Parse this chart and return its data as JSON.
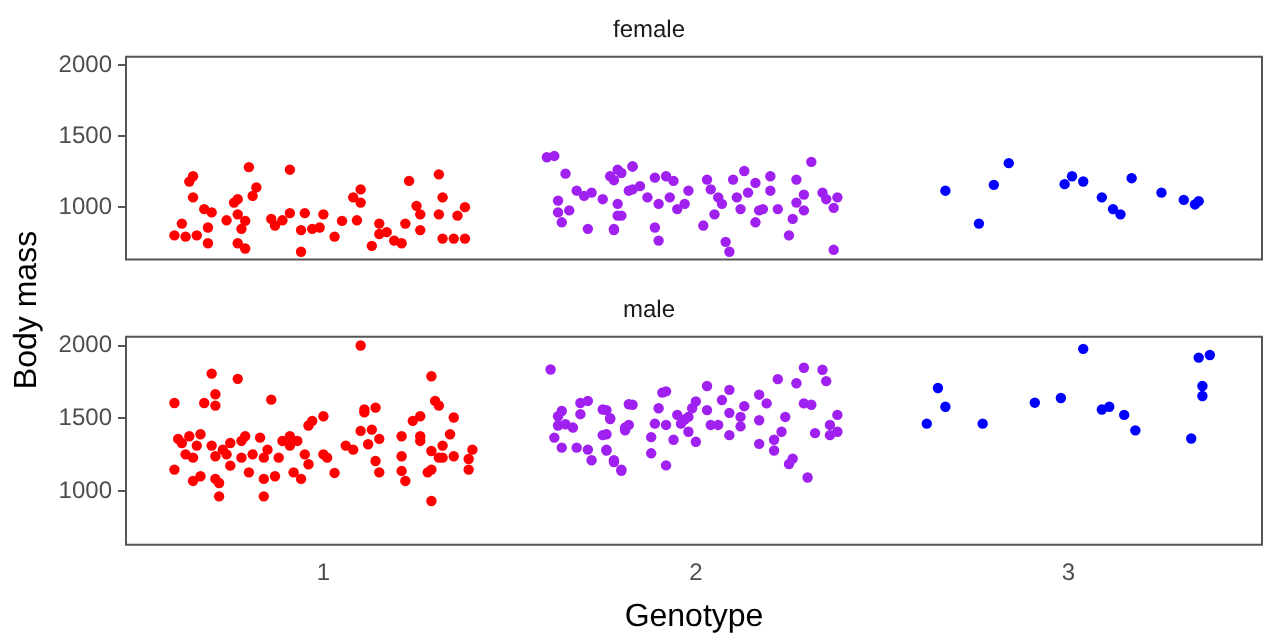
{
  "chart_data": [
    {
      "type": "scatter",
      "title": "female",
      "ylabel": "Body mass",
      "xlim": [
        0.47,
        3.52
      ],
      "xticks": [
        1,
        2,
        3
      ],
      "ylim": [
        630,
        2060
      ],
      "yticks": [
        1000,
        1500,
        2000
      ],
      "grid": false,
      "legend": false,
      "marker": "circle",
      "tick_labels": "y",
      "series": [
        {
          "color": "#ff0000",
          "x": [
            0.6,
            0.62,
            0.64,
            0.65,
            0.65,
            0.63,
            0.66,
            0.68,
            0.69,
            0.69,
            0.7,
            0.74,
            0.76,
            0.77,
            0.77,
            0.78,
            0.77,
            0.79,
            0.79,
            0.8,
            0.81,
            0.82,
            0.86,
            0.87,
            0.89,
            0.91,
            0.91,
            0.94,
            0.95,
            0.94,
            0.97,
            1.0,
            0.99,
            1.03,
            1.05,
            1.08,
            1.1,
            1.1,
            1.09,
            1.13,
            1.15,
            1.15,
            1.17,
            1.19,
            1.21,
            1.22,
            1.23,
            1.25,
            1.26,
            1.26,
            1.31,
            1.32,
            1.31,
            1.32,
            1.35,
            1.36,
            1.38,
            1.38
          ],
          "values": [
            801,
            884,
            1180,
            1218,
            1069,
            792,
            801,
            986,
            745,
            856,
            963,
            907,
            1032,
            949,
            1056,
            847,
            745,
            708,
            903,
            1282,
            1079,
            1139,
            917,
            870,
            907,
            1264,
            958,
            685,
            958,
            838,
            847,
            949,
            856,
            792,
            903,
            1069,
            1125,
            1032,
            907,
            727,
            884,
            810,
            824,
            764,
            745,
            884,
            1185,
            1009,
            949,
            838,
            1231,
            1069,
            949,
            778,
            778,
            940,
            778,
            1000
          ]
        },
        {
          "color": "#a020f0",
          "x": [
            1.6,
            1.62,
            1.65,
            1.63,
            1.63,
            1.64,
            1.66,
            1.68,
            1.71,
            1.7,
            1.72,
            1.75,
            1.77,
            1.8,
            1.79,
            1.8,
            1.78,
            1.83,
            1.82,
            1.78,
            1.79,
            1.79,
            1.78,
            1.83,
            1.83,
            1.85,
            1.87,
            1.89,
            1.89,
            1.9,
            1.9,
            1.92,
            1.93,
            1.94,
            1.95,
            1.97,
            1.98,
            2.02,
            2.03,
            2.04,
            2.05,
            2.06,
            2.07,
            2.08,
            2.09,
            2.1,
            2.11,
            2.12,
            2.13,
            2.14,
            2.16,
            2.17,
            2.16,
            2.18,
            2.2,
            2.2,
            2.22,
            2.25,
            2.26,
            2.27,
            2.27,
            2.29,
            2.29,
            2.31,
            2.34,
            2.35,
            2.37,
            2.38,
            2.37
          ],
          "values": [
            1352,
            1361,
            1236,
            1046,
            963,
            893,
            977,
            1116,
            847,
            1079,
            1102,
            1056,
            1218,
            1241,
            1023,
            940,
            847,
            1287,
            1116,
            1190,
            1264,
            940,
            838,
            1287,
            1125,
            1148,
            1069,
            1208,
            856,
            764,
            1023,
            1218,
            1069,
            1185,
            986,
            1023,
            1116,
            870,
            1194,
            1125,
            949,
            1069,
            1023,
            755,
            685,
            1194,
            1069,
            986,
            1255,
            1102,
            1171,
            977,
            893,
            986,
            1218,
            1116,
            986,
            801,
            917,
            1032,
            1194,
            1088,
            977,
            1319,
            1102,
            1056,
            995,
            1069,
            699
          ]
        },
        {
          "color": "#0000ff",
          "x": [
            2.67,
            2.76,
            2.8,
            2.84,
            2.99,
            3.01,
            3.04,
            3.09,
            3.12,
            3.14,
            3.17,
            3.25,
            3.31,
            3.34,
            3.35
          ],
          "values": [
            1116,
            884,
            1157,
            1310,
            1162,
            1218,
            1181,
            1069,
            986,
            949,
            1204,
            1102,
            1051,
            1019,
            1042
          ]
        }
      ]
    },
    {
      "type": "scatter",
      "title": "male",
      "xlabel": "Genotype",
      "xlim": [
        0.47,
        3.52
      ],
      "xticks": [
        1,
        2,
        3
      ],
      "ylim": [
        630,
        2060
      ],
      "yticks": [
        1000,
        1500,
        2000
      ],
      "grid": false,
      "legend": false,
      "marker": "circle",
      "series": [
        {
          "color": "#ff0000",
          "x": [
            0.6,
            0.6,
            0.61,
            0.62,
            0.63,
            0.64,
            0.65,
            0.65,
            0.66,
            0.67,
            0.67,
            0.68,
            0.7,
            0.71,
            0.71,
            0.7,
            0.71,
            0.71,
            0.72,
            0.72,
            0.73,
            0.74,
            0.75,
            0.75,
            0.77,
            0.78,
            0.78,
            0.79,
            0.8,
            0.81,
            0.83,
            0.84,
            0.84,
            0.84,
            0.85,
            0.86,
            0.87,
            0.88,
            0.89,
            0.91,
            0.91,
            0.92,
            0.93,
            0.94,
            0.95,
            0.96,
            0.96,
            0.97,
            1.0,
            1.0,
            1.01,
            1.03,
            1.06,
            1.08,
            1.1,
            1.1,
            1.11,
            1.11,
            1.12,
            1.13,
            1.14,
            1.14,
            1.15,
            1.15,
            1.21,
            1.21,
            1.21,
            1.22,
            1.24,
            1.26,
            1.26,
            1.26,
            1.28,
            1.29,
            1.29,
            1.29,
            1.29,
            1.3,
            1.31,
            1.31,
            1.32,
            1.32,
            1.35,
            1.35,
            1.34,
            1.39,
            1.39,
            1.4
          ],
          "values": [
            1605,
            1147,
            1358,
            1330,
            1252,
            1376,
            1229,
            1069,
            1312,
            1101,
            1390,
            1605,
            1807,
            1665,
            1587,
            1312,
            1239,
            1083,
            963,
            1055,
            1284,
            1252,
            1330,
            1174,
            1771,
            1344,
            1229,
            1376,
            1128,
            1252,
            1367,
            1229,
            963,
            1083,
            1284,
            1628,
            1101,
            1229,
            1344,
            1312,
            1376,
            1128,
            1344,
            1083,
            1252,
            1184,
            1450,
            1482,
            1514,
            1252,
            1229,
            1124,
            1312,
            1284,
            2000,
            1413,
            1541,
            1560,
            1321,
            1422,
            1573,
            1206,
            1128,
            1358,
            1239,
            1376,
            1138,
            1069,
            1482,
            1514,
            1376,
            1344,
            1128,
            1147,
            1789,
            1275,
            931,
            1619,
            1587,
            1229,
            1312,
            1229,
            1239,
            1505,
            1390,
            1220,
            1147,
            1284
          ]
        },
        {
          "color": "#a020f0",
          "x": [
            1.61,
            1.62,
            1.63,
            1.63,
            1.64,
            1.64,
            1.65,
            1.67,
            1.68,
            1.69,
            1.69,
            1.71,
            1.71,
            1.72,
            1.75,
            1.76,
            1.76,
            1.77,
            1.78,
            1.8,
            1.81,
            1.82,
            1.76,
            1.77,
            1.75,
            1.76,
            1.78,
            1.8,
            1.81,
            1.82,
            1.83,
            1.88,
            1.88,
            1.89,
            1.9,
            1.91,
            1.92,
            1.92,
            1.92,
            1.94,
            1.95,
            1.96,
            1.97,
            1.98,
            1.98,
            1.99,
            2.0,
            2.0,
            2.03,
            2.03,
            2.04,
            2.06,
            2.07,
            2.09,
            2.09,
            2.09,
            2.12,
            2.13,
            2.12,
            2.17,
            2.17,
            2.17,
            2.19,
            2.21,
            2.21,
            2.22,
            2.23,
            2.24,
            2.25,
            2.26,
            2.27,
            2.29,
            2.29,
            2.3,
            2.31,
            2.32,
            2.34,
            2.35,
            2.36,
            2.36,
            2.38,
            2.38
          ],
          "values": [
            1835,
            1367,
            1514,
            1450,
            1550,
            1298,
            1459,
            1436,
            1298,
            1605,
            1528,
            1619,
            1284,
            1211,
            1560,
            1390,
            1284,
            1495,
            1211,
            1147,
            1436,
            1596,
            1556,
            1500,
            1384,
            1278,
            1199,
            1139,
            1417,
            1454,
            1593,
            1370,
            1259,
            1463,
            1569,
            1676,
            1685,
            1176,
            1454,
            1352,
            1523,
            1463,
            1491,
            1407,
            1509,
            1569,
            1338,
            1616,
            1722,
            1556,
            1454,
            1454,
            1625,
            1695,
            1537,
            1384,
            1444,
            1583,
            1509,
            1324,
            1486,
            1662,
            1602,
            1352,
            1278,
            1769,
            1407,
            1509,
            1185,
            1222,
            1741,
            1847,
            1602,
            1093,
            1593,
            1398,
            1833,
            1755,
            1454,
            1384,
            1407,
            1523
          ]
        },
        {
          "color": "#0000ff",
          "x": [
            2.62,
            2.65,
            2.67,
            2.77,
            2.91,
            2.98,
            3.04,
            3.09,
            3.11,
            3.15,
            3.18,
            3.33,
            3.35,
            3.38,
            3.36,
            3.36
          ],
          "values": [
            1463,
            1708,
            1579,
            1463,
            1607,
            1639,
            1977,
            1560,
            1579,
            1523,
            1417,
            1361,
            1917,
            1935,
            1722,
            1653
          ]
        }
      ]
    }
  ]
}
